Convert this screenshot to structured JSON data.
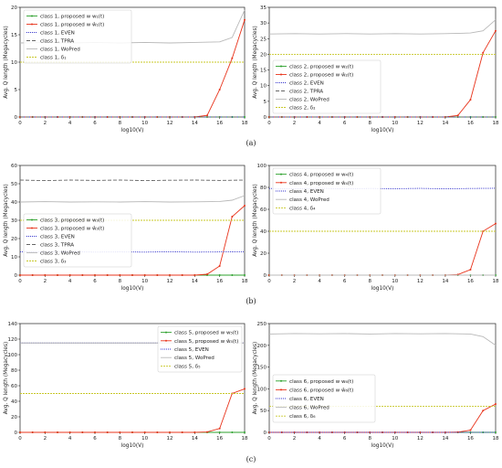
{
  "captions": [
    "(a)",
    "(b)",
    "(c)"
  ],
  "chart_data": [
    {
      "type": "line",
      "xlabel": "log10(V)",
      "ylabel": "Avg. Q length (Megacycles)",
      "xlim": [
        0,
        18
      ],
      "ylim": [
        0,
        20
      ],
      "x_ticks": [
        0,
        2,
        4,
        6,
        8,
        10,
        12,
        14,
        16,
        18
      ],
      "y_ticks": [
        0,
        5,
        10,
        15,
        20
      ],
      "legend_position": "upper-left",
      "series": [
        {
          "name": "class 1, proposed w w₁(t)",
          "style": "green-dot",
          "x": [
            0,
            1,
            2,
            3,
            4,
            5,
            6,
            7,
            8,
            9,
            10,
            11,
            12,
            13,
            14,
            15,
            16,
            17,
            18
          ],
          "y": [
            0,
            0,
            0,
            0,
            0,
            0,
            0,
            0,
            0,
            0,
            0,
            0,
            0,
            0,
            0,
            0,
            0,
            0,
            0
          ]
        },
        {
          "name": "class 1, proposed w ŵ₁(t)",
          "style": "red-dot",
          "x": [
            0,
            1,
            2,
            3,
            4,
            5,
            6,
            7,
            8,
            9,
            10,
            11,
            12,
            13,
            14,
            15,
            16,
            17,
            18
          ],
          "y": [
            0,
            0,
            0,
            0,
            0,
            0,
            0,
            0,
            0,
            0,
            0,
            0,
            0,
            0,
            0,
            0.3,
            5,
            10.7,
            17.7
          ]
        },
        {
          "name": "class 1, EVEN",
          "style": "blue-dotted",
          "x": [
            0,
            18
          ],
          "y": [
            0,
            0
          ]
        },
        {
          "name": "class 1, TPRA",
          "style": "gray-dashed",
          "x": [
            0,
            18
          ],
          "y": [
            0,
            0
          ]
        },
        {
          "name": "class 1, WoPred",
          "style": "lightgray",
          "x": [
            0,
            2,
            4,
            6,
            8,
            10,
            12,
            14,
            16,
            17,
            18
          ],
          "y": [
            13.5,
            13.6,
            13.5,
            13.6,
            13.5,
            13.6,
            13.5,
            13.6,
            13.7,
            14.5,
            19.5
          ]
        },
        {
          "name": "class 1, δ₁",
          "style": "yellow",
          "x": [
            0,
            18
          ],
          "y": [
            10,
            10
          ]
        }
      ]
    },
    {
      "type": "line",
      "xlabel": "log10(V)",
      "ylabel": "Avg. Q length (Megacycles)",
      "xlim": [
        0,
        18
      ],
      "ylim": [
        0,
        35
      ],
      "x_ticks": [
        0,
        2,
        4,
        6,
        8,
        10,
        12,
        14,
        16,
        18
      ],
      "y_ticks": [
        0,
        5,
        10,
        15,
        20,
        25,
        30,
        35
      ],
      "legend_position": "center-left",
      "series": [
        {
          "name": "class 2, proposed w w₂(t)",
          "style": "green-dot",
          "x": [
            0,
            1,
            2,
            3,
            4,
            5,
            6,
            7,
            8,
            9,
            10,
            11,
            12,
            13,
            14,
            15,
            16,
            17,
            18
          ],
          "y": [
            0,
            0,
            0,
            0,
            0,
            0,
            0,
            0,
            0,
            0,
            0,
            0,
            0,
            0,
            0,
            0,
            0,
            0,
            0
          ]
        },
        {
          "name": "class 2, proposed w ŵ₂(t)",
          "style": "red-dot",
          "x": [
            0,
            1,
            2,
            3,
            4,
            5,
            6,
            7,
            8,
            9,
            10,
            11,
            12,
            13,
            14,
            15,
            16,
            17,
            18
          ],
          "y": [
            0,
            0,
            0,
            0,
            0,
            0,
            0,
            0,
            0,
            0,
            0,
            0,
            0,
            0,
            0,
            0.5,
            5.5,
            20.5,
            27.5
          ]
        },
        {
          "name": "class 2, EVEN",
          "style": "blue-dotted",
          "x": [
            0,
            18
          ],
          "y": [
            0,
            0
          ]
        },
        {
          "name": "class 2, TPRA",
          "style": "gray-dashed",
          "x": [
            0,
            18
          ],
          "y": [
            0,
            0
          ]
        },
        {
          "name": "class 2, WoPred",
          "style": "lightgray",
          "x": [
            0,
            2,
            4,
            6,
            8,
            10,
            12,
            14,
            16,
            17,
            18
          ],
          "y": [
            26.5,
            26.6,
            26.5,
            26.6,
            26.5,
            26.6,
            26.5,
            26.6,
            26.8,
            27.5,
            31
          ]
        },
        {
          "name": "class 2, δ₂",
          "style": "yellow",
          "x": [
            0,
            18
          ],
          "y": [
            20,
            20
          ]
        }
      ]
    },
    {
      "type": "line",
      "xlabel": "log10(V)",
      "ylabel": "Avg. Q length (Megacycles)",
      "xlim": [
        0,
        18
      ],
      "ylim": [
        0,
        60
      ],
      "x_ticks": [
        0,
        2,
        4,
        6,
        8,
        10,
        12,
        14,
        16,
        18
      ],
      "y_ticks": [
        0,
        10,
        20,
        30,
        40,
        50,
        60
      ],
      "legend_position": "center-left",
      "series": [
        {
          "name": "class 3, proposed w w₃(t)",
          "style": "green-dot",
          "x": [
            0,
            1,
            2,
            3,
            4,
            5,
            6,
            7,
            8,
            9,
            10,
            11,
            12,
            13,
            14,
            15,
            16,
            17,
            18
          ],
          "y": [
            0,
            0,
            0,
            0,
            0,
            0,
            0,
            0,
            0,
            0,
            0,
            0,
            0,
            0,
            0,
            0,
            0,
            0,
            0
          ]
        },
        {
          "name": "class 3, proposed w ŵ₃(t)",
          "style": "red-dot",
          "x": [
            0,
            1,
            2,
            3,
            4,
            5,
            6,
            7,
            8,
            9,
            10,
            11,
            12,
            13,
            14,
            15,
            16,
            17,
            18
          ],
          "y": [
            0,
            0,
            0,
            0,
            0,
            0,
            0,
            0,
            0,
            0,
            0,
            0,
            0,
            0,
            0,
            0.5,
            5,
            32,
            38
          ]
        },
        {
          "name": "class 3, EVEN",
          "style": "blue-dotted",
          "x": [
            0,
            2,
            4,
            6,
            8,
            10,
            12,
            14,
            16,
            18
          ],
          "y": [
            12.8,
            12.6,
            12.8,
            12.6,
            12.7,
            12.6,
            12.8,
            12.6,
            12.7,
            12.8
          ]
        },
        {
          "name": "class 3, TPRA",
          "style": "gray-dashed",
          "x": [
            0,
            2,
            4,
            6,
            8,
            10,
            12,
            14,
            16,
            18
          ],
          "y": [
            52,
            51.7,
            52,
            51.8,
            52,
            51.7,
            51.9,
            52,
            51.8,
            52
          ]
        },
        {
          "name": "class 3, WoPred",
          "style": "lightgray",
          "x": [
            0,
            2,
            4,
            6,
            8,
            10,
            12,
            14,
            16,
            17,
            18
          ],
          "y": [
            40,
            40.2,
            40,
            40.1,
            40,
            40.2,
            40,
            40.1,
            40.3,
            41,
            43.5
          ]
        },
        {
          "name": "class 3, δ₃",
          "style": "yellow",
          "x": [
            0,
            18
          ],
          "y": [
            30,
            30
          ]
        }
      ]
    },
    {
      "type": "line",
      "xlabel": "log10(V)",
      "ylabel": "Avg. Q length (Megacycles)",
      "xlim": [
        0,
        18
      ],
      "ylim": [
        0,
        100
      ],
      "x_ticks": [
        0,
        2,
        4,
        6,
        8,
        10,
        12,
        14,
        16,
        18
      ],
      "y_ticks": [
        0,
        20,
        40,
        60,
        80,
        100
      ],
      "legend_position": "upper-left",
      "series": [
        {
          "name": "class 4, proposed w w₄(t)",
          "style": "green-dot",
          "x": [
            0,
            1,
            2,
            3,
            4,
            5,
            6,
            7,
            8,
            9,
            10,
            11,
            12,
            13,
            14,
            15,
            16,
            17,
            18
          ],
          "y": [
            0,
            0,
            0,
            0,
            0,
            0,
            0,
            0,
            0,
            0,
            0,
            0,
            0,
            0,
            0,
            0,
            0,
            0,
            0
          ]
        },
        {
          "name": "class 4, proposed w ŵ₄(t)",
          "style": "red-dot",
          "x": [
            0,
            1,
            2,
            3,
            4,
            5,
            6,
            7,
            8,
            9,
            10,
            11,
            12,
            13,
            14,
            15,
            16,
            17,
            18
          ],
          "y": [
            0,
            0,
            0,
            0,
            0,
            0,
            0,
            0,
            0,
            0,
            0,
            0,
            0,
            0,
            0,
            0.5,
            5,
            40,
            47
          ]
        },
        {
          "name": "class 4, EVEN",
          "style": "blue-dotted",
          "x": [
            0,
            2,
            4,
            6,
            8,
            10,
            12,
            14,
            16,
            18
          ],
          "y": [
            79,
            78.6,
            79.2,
            78.7,
            79,
            78.8,
            79.1,
            78.7,
            79,
            79.2
          ]
        },
        {
          "name": "class 4, WoPred",
          "style": "lightgray",
          "x": [
            0,
            18
          ],
          "y": [
            0,
            0
          ]
        },
        {
          "name": "class 4, δ₄",
          "style": "yellow",
          "x": [
            0,
            18
          ],
          "y": [
            40,
            40
          ]
        }
      ]
    },
    {
      "type": "line",
      "xlabel": "log10(V)",
      "ylabel": "Avg. Q length (Megacycles)",
      "xlim": [
        0,
        18
      ],
      "ylim": [
        0,
        140
      ],
      "x_ticks": [
        0,
        2,
        4,
        6,
        8,
        10,
        12,
        14,
        16,
        18
      ],
      "y_ticks": [
        0,
        20,
        40,
        60,
        80,
        100,
        120,
        140
      ],
      "legend_position": "upper-right",
      "series": [
        {
          "name": "class 5, proposed w w₅(t)",
          "style": "green-dot",
          "x": [
            0,
            1,
            2,
            3,
            4,
            5,
            6,
            7,
            8,
            9,
            10,
            11,
            12,
            13,
            14,
            15,
            16,
            17,
            18
          ],
          "y": [
            0,
            0,
            0,
            0,
            0,
            0,
            0,
            0,
            0,
            0,
            0,
            0,
            0,
            0,
            0,
            0,
            0,
            0,
            0
          ]
        },
        {
          "name": "class 5, proposed w ŵ₅(t)",
          "style": "red-dot",
          "x": [
            0,
            1,
            2,
            3,
            4,
            5,
            6,
            7,
            8,
            9,
            10,
            11,
            12,
            13,
            14,
            15,
            16,
            17,
            18
          ],
          "y": [
            0,
            0,
            0,
            0,
            0,
            0,
            0,
            0,
            0,
            0,
            0,
            0,
            0,
            0,
            0,
            0.5,
            5,
            50,
            56
          ]
        },
        {
          "name": "class 5, EVEN",
          "style": "blue-dotted",
          "x": [
            0,
            18
          ],
          "y": [
            115,
            115
          ]
        },
        {
          "name": "class 5, WoPred",
          "style": "lightgray",
          "x": [
            0,
            18
          ],
          "y": [
            115,
            115
          ]
        },
        {
          "name": "class 5, δ₅",
          "style": "yellow",
          "x": [
            0,
            18
          ],
          "y": [
            50,
            50
          ]
        }
      ]
    },
    {
      "type": "line",
      "xlabel": "log10(V)",
      "ylabel": "Avg. Q length (Megacycles)",
      "xlim": [
        0,
        18
      ],
      "ylim": [
        0,
        250
      ],
      "x_ticks": [
        0,
        2,
        4,
        6,
        8,
        10,
        12,
        14,
        16,
        18
      ],
      "y_ticks": [
        0,
        50,
        100,
        150,
        200,
        250
      ],
      "legend_position": "center-left",
      "series": [
        {
          "name": "class 6, proposed w w₆(t)",
          "style": "green-dot",
          "x": [
            0,
            1,
            2,
            3,
            4,
            5,
            6,
            7,
            8,
            9,
            10,
            11,
            12,
            13,
            14,
            15,
            16,
            17,
            18
          ],
          "y": [
            0,
            0,
            0,
            0,
            0,
            0,
            0,
            0,
            0,
            0,
            0,
            0,
            0,
            0,
            0,
            0,
            0,
            0,
            0
          ]
        },
        {
          "name": "class 6, proposed w ŵ₆(t)",
          "style": "red-dot",
          "x": [
            0,
            1,
            2,
            3,
            4,
            5,
            6,
            7,
            8,
            9,
            10,
            11,
            12,
            13,
            14,
            15,
            16,
            17,
            18
          ],
          "y": [
            0,
            0,
            0,
            0,
            0,
            0,
            0,
            0,
            0,
            0,
            0,
            0,
            0,
            0,
            0,
            0.5,
            5,
            50,
            65
          ]
        },
        {
          "name": "class 6, EVEN",
          "style": "blue-dotted",
          "x": [
            0,
            18
          ],
          "y": [
            0,
            0
          ]
        },
        {
          "name": "class 6, WoPred",
          "style": "lightgray",
          "x": [
            0,
            2,
            4,
            6,
            8,
            10,
            12,
            14,
            16,
            17,
            18
          ],
          "y": [
            226,
            227,
            226.5,
            227,
            226,
            227,
            226.5,
            227,
            226,
            220,
            200
          ]
        },
        {
          "name": "class 6, δ₆",
          "style": "yellow",
          "x": [
            0,
            18
          ],
          "y": [
            60,
            60
          ]
        }
      ]
    }
  ]
}
